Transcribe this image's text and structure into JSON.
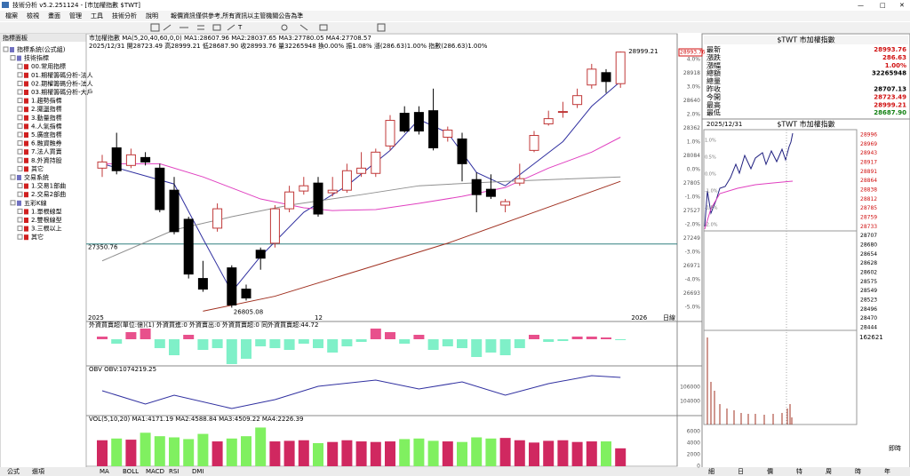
{
  "window": {
    "title": "技術分析 v5.2.251124 - [市加權指數 $TWT]"
  },
  "menu": [
    "檔案",
    "檢視",
    "畫面",
    "管理",
    "工具",
    "技術分析",
    "說明"
  ],
  "notice": "報價資訊僅供參考,所有資訊以主管機關公告為準",
  "left_panel": {
    "title": "指標面板",
    "tree": [
      {
        "label": "指標系統(公式組)",
        "level": 0
      },
      {
        "label": "技術指標",
        "level": 1
      },
      {
        "label": "00.常用指標",
        "level": 2
      },
      {
        "label": "01.期權籌碼分析-法人",
        "level": 2
      },
      {
        "label": "02.期權籌碼分析-法人",
        "level": 2
      },
      {
        "label": "03.期權籌碼分析-大戶",
        "level": 2
      },
      {
        "label": "1.趨勢指標",
        "level": 2
      },
      {
        "label": "2.擺盪指標",
        "level": 2
      },
      {
        "label": "3.動量指標",
        "level": 2
      },
      {
        "label": "4.人氣指標",
        "level": 2
      },
      {
        "label": "5.廣度指標",
        "level": 2
      },
      {
        "label": "6.融資融券",
        "level": 2
      },
      {
        "label": "7.法人買賣",
        "level": 2
      },
      {
        "label": "8.外資持股",
        "level": 2
      },
      {
        "label": "其它",
        "level": 2
      },
      {
        "label": "交易系統",
        "level": 1
      },
      {
        "label": "1.交易1部曲",
        "level": 2
      },
      {
        "label": "2.交易2部曲",
        "level": 2
      },
      {
        "label": "五彩K線",
        "level": 1
      },
      {
        "label": "1.單根線型",
        "level": 2
      },
      {
        "label": "2.雙根線型",
        "level": 2
      },
      {
        "label": "3.三根以上",
        "level": 2
      },
      {
        "label": "其它",
        "level": 2
      }
    ],
    "tabs": [
      "公式",
      "選項"
    ]
  },
  "chart": {
    "type": "candlestick",
    "header": "市加權指數 MA(5,20,40,60,0,0) MA1:28607.96 MA2:28037.65 MA3:27780.05 MA4:27708.57",
    "info": "2025/12/31 開28723.49 高28999.21 低28687.90 收28993.76 量32265948 換0.00% 振1.08% 漲(286.63)1.00% 指數(286.63)1.00%",
    "ylim": [
      26740,
      29075
    ],
    "up_color": "#c03838",
    "down_color": "#000000",
    "candles": {
      "open": [
        28000,
        28174,
        28023,
        28091,
        28000,
        27811,
        27562,
        27055,
        27486,
        27146,
        26964,
        27297,
        27357,
        27652,
        27804,
        27872,
        27789,
        27811,
        27955,
        27955,
        28190,
        28470,
        28477,
        28492,
        28265,
        28250,
        27902,
        27819,
        27683,
        27872,
        28152,
        28379,
        28485,
        28545,
        28712,
        28818,
        28723.49
      ],
      "close": [
        28053,
        27978,
        28114,
        28053,
        27645,
        27456,
        27093,
        26964,
        27652,
        26828,
        26888,
        27229,
        27652,
        27796,
        27849,
        27607,
        27811,
        27978,
        28000,
        28137,
        28409,
        28318,
        28318,
        28174,
        28326,
        28038,
        27773,
        27758,
        27713,
        27910,
        28280,
        28424,
        28485,
        28621,
        28848,
        28742,
        28993.76
      ],
      "high": [
        28114,
        28303,
        28167,
        28137,
        28038,
        27925,
        27584,
        27206,
        27698,
        27168,
        27002,
        27320,
        27683,
        27849,
        27925,
        27925,
        27925,
        28038,
        28137,
        28167,
        28454,
        28530,
        28530,
        28681,
        28356,
        28303,
        27963,
        27947,
        27736,
        28038,
        28318,
        28492,
        28568,
        28681,
        28893,
        28848,
        28999.21
      ],
      "low": [
        27925,
        27947,
        28000,
        28023,
        27622,
        27433,
        27055,
        26941,
        27456,
        26805.08,
        26866,
        27130,
        27320,
        27622,
        27773,
        27584,
        27758,
        27789,
        27925,
        27925,
        28152,
        28303,
        28288,
        28152,
        28227,
        27887,
        27622,
        27736,
        27622,
        27849,
        28137,
        28364,
        28432,
        28515,
        28681,
        28644,
        28687.9
      ]
    },
    "ma_lines": [
      {
        "color": "#3030a0",
        "index": [
          0,
          5,
          7,
          9,
          11,
          14,
          17,
          20,
          22,
          24,
          26,
          28,
          30,
          32,
          34,
          36
        ],
        "values": [
          28038,
          27864,
          27395,
          26941,
          27244,
          27622,
          27849,
          28152,
          28417,
          28303,
          27963,
          27849,
          28038,
          28227,
          28530,
          28742
        ]
      },
      {
        "color": "#e040c0",
        "index": [
          0,
          4,
          7,
          11,
          14,
          16,
          19,
          22,
          25,
          28,
          31,
          34,
          36
        ],
        "values": [
          28038,
          28038,
          27925,
          27736,
          27660,
          27637,
          27645,
          27698,
          27758,
          27834,
          28000,
          28137,
          28265
        ]
      },
      {
        "color": "#909090",
        "index": [
          0,
          5,
          9,
          13,
          18,
          22,
          28,
          36
        ],
        "values": [
          27206,
          27471,
          27584,
          27683,
          27773,
          27849,
          27887,
          27925
        ]
      },
      {
        "color": "#a03020",
        "index": [
          7,
          12,
          18,
          24,
          30,
          36
        ],
        "values": [
          26775,
          26903,
          27130,
          27357,
          27622,
          27887
        ]
      }
    ],
    "high_mark": 28999.21,
    "low_mark": 26805.08,
    "ref_line": 27350.76,
    "x_labels": [
      "2025",
      "12",
      "2026"
    ],
    "last_price": "28993.76",
    "axis_labels": [
      "4.0%",
      "28918",
      "3.0%",
      "28640",
      "2.0%",
      "28362",
      "1.0%",
      "28084",
      "0.0%",
      "27805",
      "-1.0%",
      "27527",
      "-2.0%",
      "27249",
      "-3.0%",
      "26971",
      "-4.0%",
      "26693",
      "-5.0%"
    ],
    "period": "日線"
  },
  "foreign": {
    "title": "外資買賣超(單位:億)(1) 外資買進:0 外資賣出:0 外資買賣超:0 同外資買賣超:44.72",
    "ylim": [
      -28,
      14
    ],
    "pos_color": "#e8508c",
    "neg_color": "#7ff0c8",
    "values": [
      3,
      -5,
      8,
      12,
      -10,
      -18,
      5,
      -12,
      -10,
      -28,
      -22,
      -8,
      -10,
      -12,
      -5,
      -10,
      -15,
      -8,
      -3,
      12,
      8,
      -5,
      5,
      -12,
      -8,
      -10,
      -20,
      -15,
      -18,
      -10,
      5,
      -3,
      -2,
      3,
      3,
      2,
      -1
    ]
  },
  "obv": {
    "title": "OBV OBV:1074219.25",
    "color": "#3030a0",
    "ylim": [
      102375,
      108625
    ],
    "yticks": [
      104000,
      106000
    ],
    "index": [
      0,
      3,
      5,
      9,
      12,
      15,
      19,
      22,
      25,
      28,
      31,
      34,
      36
    ],
    "values": [
      105500,
      103625,
      104875,
      103000,
      104250,
      106125,
      107000,
      105750,
      106750,
      104875,
      106500,
      107625,
      107375
    ]
  },
  "volume": {
    "title": "VOL(5,10,20) MA1:4171.19 MA2:4588.84 MA3:4509.22 MA4:2226.39",
    "ylim": [
      0,
      8150
    ],
    "yticks": [
      0,
      2000,
      4000,
      6000
    ],
    "up_color": "#d02860",
    "down_color": "#80f060",
    "values": [
      4500,
      4800,
      4600,
      5800,
      5200,
      5000,
      4700,
      5600,
      4300,
      4800,
      5200,
      6700,
      4300,
      4400,
      4500,
      4000,
      4200,
      4500,
      4300,
      4200,
      4300,
      4700,
      4800,
      4400,
      4300,
      4200,
      5000,
      4800,
      4900,
      4500,
      4100,
      4400,
      4500,
      4200,
      4300,
      4300,
      3100
    ]
  },
  "indicator_tabs": [
    "MA",
    "BOLL",
    "MACD",
    "RSI",
    "DMI"
  ],
  "quote": {
    "title": "$TWT 市加權指數",
    "rows": [
      {
        "label": "最新",
        "value": "28993.76",
        "color": "#d01010"
      },
      {
        "label": "漲跌",
        "value": "286.63",
        "color": "#d01010"
      },
      {
        "label": "漲幅",
        "value": "1.00%",
        "color": "#d01010"
      },
      {
        "label": "總額",
        "value": "32265948",
        "color": "#000000"
      },
      {
        "label": "總量"
      },
      {
        "label": "昨收",
        "value": "28707.13",
        "color": "#000000"
      },
      {
        "label": "今開",
        "value": "28723.49",
        "color": "#d01010"
      },
      {
        "label": "最高",
        "value": "28999.21",
        "color": "#d01010"
      },
      {
        "label": "最低",
        "value": "28687.90",
        "color": "#108010"
      }
    ]
  },
  "intraday": {
    "date": "2025/12/31",
    "title": "$TWT 市加權指數",
    "price_labels": [
      "28996",
      "28969",
      "28943",
      "28917",
      "28891",
      "28864",
      "28838",
      "28812",
      "28785",
      "28759",
      "28733",
      "28707",
      "28680",
      "28654",
      "28628",
      "28602",
      "28575",
      "28549",
      "28523",
      "28496",
      "28470",
      "28444"
    ],
    "pct_labels": [
      "1.0%",
      "0.5%",
      "0.0%",
      "-1.0%",
      "-1.5%",
      "-2.0%"
    ],
    "volume_label": "162621",
    "mode": "即時",
    "tabs": [
      "細",
      "日",
      "價",
      "特",
      "周",
      "時",
      "年"
    ]
  }
}
